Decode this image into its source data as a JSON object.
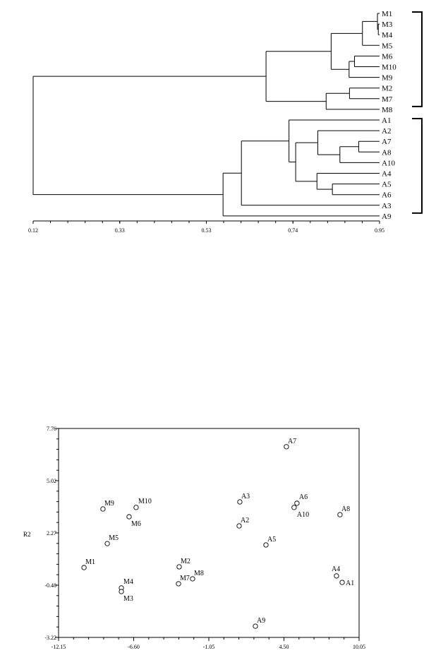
{
  "chart_data": [
    {
      "type": "dendrogram",
      "title": "",
      "xlabel": "",
      "xlim": [
        0.12,
        0.95
      ],
      "tick_labels": [
        "0.12",
        "0.33",
        "0.53",
        "0.74",
        "0.95"
      ],
      "tick_values": [
        0.12,
        0.3275,
        0.535,
        0.7425,
        0.95
      ],
      "minor_tick_step": 0.0415,
      "leaves": [
        "M1",
        "M3",
        "M4",
        "M5",
        "M6",
        "M10",
        "M9",
        "M2",
        "M7",
        "M8",
        "A1",
        "A2",
        "A7",
        "A8",
        "A10",
        "A4",
        "A5",
        "A6",
        "A3",
        "A9"
      ],
      "groups": [
        [
          "M1",
          "M8"
        ],
        [
          "A1",
          "A9"
        ]
      ],
      "tree": {
        "h": 0.12,
        "c": [
          {
            "h": 0.678,
            "c": [
              {
                "h": 0.834,
                "c": [
                  {
                    "h": 0.909,
                    "c": [
                      {
                        "h": 0.945,
                        "c": [
                          "M1",
                          {
                            "h": 0.947,
                            "c": [
                              "M3",
                              "M4"
                            ]
                          }
                        ]
                      },
                      "M5"
                    ]
                  },
                  {
                    "h": 0.877,
                    "c": [
                      {
                        "h": 0.89,
                        "c": [
                          "M6",
                          "M10"
                        ]
                      },
                      "M9"
                    ]
                  }
                ]
              },
              {
                "h": 0.822,
                "c": [
                  {
                    "h": 0.878,
                    "c": [
                      "M2",
                      "M7"
                    ]
                  },
                  "M8"
                ]
              }
            ]
          },
          {
            "h": 0.575,
            "c": [
              {
                "h": 0.619,
                "c": [
                  {
                    "h": 0.733,
                    "c": [
                      "A1",
                      {
                        "h": 0.749,
                        "c": [
                          {
                            "h": 0.802,
                            "c": [
                              "A2",
                              {
                                "h": 0.855,
                                "c": [
                                  {
                                    "h": 0.9,
                                    "c": [
                                      "A7",
                                      "A8"
                                    ]
                                  },
                                  "A10"
                                ]
                              }
                            ]
                          },
                          {
                            "h": 0.8,
                            "c": [
                              "A4",
                              {
                                "h": 0.837,
                                "c": [
                                  "A5",
                                  "A6"
                                ]
                              }
                            ]
                          }
                        ]
                      }
                    ]
                  },
                  "A3"
                ]
              },
              "A9"
            ]
          }
        ]
      }
    },
    {
      "type": "scatter",
      "title": "",
      "xlabel": "",
      "ylabel": "R2",
      "xlim": [
        -12.15,
        10.05
      ],
      "ylim": [
        -3.22,
        7.76
      ],
      "x_ticks": [
        "-12.15",
        "-6.60",
        "-1.05",
        "4.50",
        "10.05"
      ],
      "y_ticks": [
        "7.76",
        "5.02",
        "2.27",
        "-0.48",
        "-3.22"
      ],
      "points": [
        {
          "label": "M1",
          "x": -10.27,
          "y": 0.45
        },
        {
          "label": "M9",
          "x": -8.87,
          "y": 3.53
        },
        {
          "label": "M10",
          "x": -6.42,
          "y": 3.61
        },
        {
          "label": "M6",
          "x": -6.94,
          "y": 3.12
        },
        {
          "label": "M5",
          "x": -8.55,
          "y": 1.71
        },
        {
          "label": "M4",
          "x": -7.51,
          "y": -0.62
        },
        {
          "label": "M3",
          "x": -7.51,
          "y": -0.81
        },
        {
          "label": "M2",
          "x": -3.24,
          "y": 0.49
        },
        {
          "label": "M7",
          "x": -3.29,
          "y": -0.4
        },
        {
          "label": "M8",
          "x": -2.25,
          "y": -0.14
        },
        {
          "label": "A3",
          "x": 1.24,
          "y": 3.9
        },
        {
          "label": "A2",
          "x": 1.19,
          "y": 2.64
        },
        {
          "label": "A5",
          "x": 3.17,
          "y": 1.64
        },
        {
          "label": "A7",
          "x": 4.68,
          "y": 6.8
        },
        {
          "label": "A6",
          "x": 5.46,
          "y": 3.83
        },
        {
          "label": "A10",
          "x": 5.25,
          "y": 3.61
        },
        {
          "label": "A8",
          "x": 8.64,
          "y": 3.23
        },
        {
          "label": "A4",
          "x": 8.38,
          "y": 0.01
        },
        {
          "label": "A1",
          "x": 8.8,
          "y": -0.33
        },
        {
          "label": "A9",
          "x": 2.39,
          "y": -2.63
        }
      ]
    }
  ]
}
